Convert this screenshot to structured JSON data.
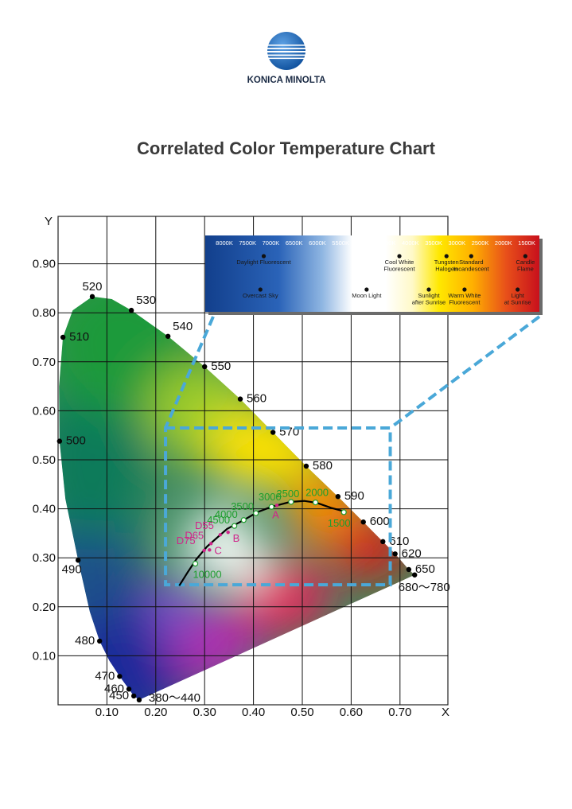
{
  "brand": {
    "name": "KONICA MINOLTA",
    "logo_icon": "globe-logo-icon",
    "color": "#1f63b0"
  },
  "title": "Correlated Color Temperature Chart",
  "chart_data": {
    "type": "scatter",
    "subtype": "cie-1931-chromaticity-diagram",
    "title": "Correlated Color Temperature Chart",
    "xlabel": "X",
    "ylabel": "Y",
    "xlim": [
      0.0,
      0.8
    ],
    "ylim": [
      0.0,
      0.9
    ],
    "grid": true,
    "x_ticks": [
      {
        "value": 0.1,
        "label": "0.10"
      },
      {
        "value": 0.2,
        "label": "0.20"
      },
      {
        "value": 0.3,
        "label": "0.30"
      },
      {
        "value": 0.4,
        "label": "0.40"
      },
      {
        "value": 0.5,
        "label": "0.50"
      },
      {
        "value": 0.6,
        "label": "0.60"
      },
      {
        "value": 0.7,
        "label": "0.70"
      }
    ],
    "y_ticks": [
      {
        "value": 0.1,
        "label": "0.10"
      },
      {
        "value": 0.2,
        "label": "0.20"
      },
      {
        "value": 0.3,
        "label": "0.30"
      },
      {
        "value": 0.4,
        "label": "0.40"
      },
      {
        "value": 0.5,
        "label": "0.50"
      },
      {
        "value": 0.6,
        "label": "0.60"
      },
      {
        "value": 0.7,
        "label": "0.70"
      },
      {
        "value": 0.8,
        "label": "0.80"
      },
      {
        "value": 0.9,
        "label": "0.90"
      }
    ],
    "spectral_locus": [
      {
        "label": "380～440",
        "x": 0.166,
        "y": 0.01,
        "side": "below-right"
      },
      {
        "label": "450",
        "x": 0.155,
        "y": 0.018,
        "side": "left"
      },
      {
        "label": "460",
        "x": 0.145,
        "y": 0.032,
        "side": "left"
      },
      {
        "label": "470",
        "x": 0.126,
        "y": 0.058,
        "side": "left"
      },
      {
        "label": "480",
        "x": 0.085,
        "y": 0.13,
        "side": "left"
      },
      {
        "label": "490",
        "x": 0.041,
        "y": 0.295,
        "side": "below-left"
      },
      {
        "label": "500",
        "x": 0.003,
        "y": 0.538,
        "side": "right"
      },
      {
        "label": "510",
        "x": 0.01,
        "y": 0.75,
        "side": "right"
      },
      {
        "label": "520",
        "x": 0.07,
        "y": 0.833,
        "side": "above"
      },
      {
        "label": "530",
        "x": 0.15,
        "y": 0.805,
        "side": "above-right"
      },
      {
        "label": "540",
        "x": 0.225,
        "y": 0.752,
        "side": "above-right"
      },
      {
        "label": "550",
        "x": 0.3,
        "y": 0.69,
        "side": "right"
      },
      {
        "label": "560",
        "x": 0.373,
        "y": 0.624,
        "side": "right"
      },
      {
        "label": "570",
        "x": 0.44,
        "y": 0.556,
        "side": "right"
      },
      {
        "label": "580",
        "x": 0.508,
        "y": 0.487,
        "side": "right"
      },
      {
        "label": "590",
        "x": 0.573,
        "y": 0.425,
        "side": "right"
      },
      {
        "label": "600",
        "x": 0.625,
        "y": 0.373,
        "side": "right"
      },
      {
        "label": "610",
        "x": 0.665,
        "y": 0.333,
        "side": "right"
      },
      {
        "label": "620",
        "x": 0.69,
        "y": 0.308,
        "side": "right"
      },
      {
        "label": "650",
        "x": 0.718,
        "y": 0.276,
        "side": "right"
      },
      {
        "label": "680～780",
        "x": 0.73,
        "y": 0.265,
        "side": "below"
      }
    ],
    "locus_shape": [
      [
        0.166,
        0.01
      ],
      [
        0.155,
        0.018
      ],
      [
        0.145,
        0.032
      ],
      [
        0.126,
        0.058
      ],
      [
        0.105,
        0.09
      ],
      [
        0.085,
        0.13
      ],
      [
        0.065,
        0.19
      ],
      [
        0.041,
        0.295
      ],
      [
        0.015,
        0.42
      ],
      [
        0.003,
        0.538
      ],
      [
        0.002,
        0.65
      ],
      [
        0.01,
        0.75
      ],
      [
        0.03,
        0.805
      ],
      [
        0.07,
        0.833
      ],
      [
        0.11,
        0.828
      ],
      [
        0.15,
        0.805
      ],
      [
        0.225,
        0.752
      ],
      [
        0.3,
        0.69
      ],
      [
        0.373,
        0.624
      ],
      [
        0.44,
        0.556
      ],
      [
        0.508,
        0.487
      ],
      [
        0.573,
        0.425
      ],
      [
        0.625,
        0.373
      ],
      [
        0.665,
        0.333
      ],
      [
        0.69,
        0.308
      ],
      [
        0.718,
        0.276
      ],
      [
        0.73,
        0.265
      ],
      [
        0.166,
        0.01
      ]
    ],
    "planckian_locus": [
      [
        0.248,
        0.243
      ],
      [
        0.265,
        0.27
      ],
      [
        0.283,
        0.297
      ],
      [
        0.305,
        0.323
      ],
      [
        0.346,
        0.359
      ],
      [
        0.38,
        0.377
      ],
      [
        0.408,
        0.393
      ],
      [
        0.437,
        0.404
      ],
      [
        0.475,
        0.414
      ],
      [
        0.504,
        0.416
      ],
      [
        0.53,
        0.412
      ],
      [
        0.559,
        0.402
      ],
      [
        0.585,
        0.395
      ]
    ],
    "cct_points": [
      {
        "label": "10000",
        "x": 0.281,
        "y": 0.288
      },
      {
        "label": "4500",
        "x": 0.361,
        "y": 0.365
      },
      {
        "label": "4000",
        "x": 0.38,
        "y": 0.377
      },
      {
        "label": "3500",
        "x": 0.405,
        "y": 0.391
      },
      {
        "label": "3000",
        "x": 0.437,
        "y": 0.404
      },
      {
        "label": "2500",
        "x": 0.477,
        "y": 0.414
      },
      {
        "label": "2000",
        "x": 0.527,
        "y": 0.413
      },
      {
        "label": "1500",
        "x": 0.585,
        "y": 0.393
      }
    ],
    "illuminants": [
      {
        "label": "D75",
        "x": 0.299,
        "y": 0.315
      },
      {
        "label": "D65",
        "x": 0.313,
        "y": 0.329
      },
      {
        "label": "D55",
        "x": 0.332,
        "y": 0.347
      },
      {
        "label": "C",
        "x": 0.31,
        "y": 0.316
      },
      {
        "label": "B",
        "x": 0.348,
        "y": 0.352
      },
      {
        "label": "A",
        "x": 0.448,
        "y": 0.407
      }
    ],
    "zoom_box": {
      "x0": 0.22,
      "x1": 0.68,
      "y0": 0.245,
      "y1": 0.565,
      "color": "#4aa8d8"
    },
    "temperature_bar": {
      "scale": [
        "8000K",
        "7500K",
        "7000K",
        "6500K",
        "6000K",
        "5500K",
        "5000K",
        "4500K",
        "4000K",
        "3500K",
        "3000K",
        "2500K",
        "2000K",
        "1500K"
      ],
      "sources_top": [
        {
          "lines": [
            "Daylight Fluorescent"
          ],
          "pos": 0.175
        },
        {
          "lines": [
            "Cool White",
            "Fluorescent"
          ],
          "pos": 0.581
        },
        {
          "lines": [
            "Tungsten",
            "Halogen"
          ],
          "pos": 0.722
        },
        {
          "lines": [
            "Standard",
            "Incandescent"
          ],
          "pos": 0.796
        },
        {
          "lines": [
            "Candle",
            "Flame"
          ],
          "pos": 0.958
        }
      ],
      "sources_bottom": [
        {
          "lines": [
            "Overcast Sky"
          ],
          "pos": 0.165
        },
        {
          "lines": [
            "Moon Light"
          ],
          "pos": 0.483
        },
        {
          "lines": [
            "Sunlight",
            "after Sunrise"
          ],
          "pos": 0.669
        },
        {
          "lines": [
            "Warm White",
            "Fluorescent"
          ],
          "pos": 0.776
        },
        {
          "lines": [
            "Light",
            "at Sunrise"
          ],
          "pos": 0.935
        }
      ]
    }
  }
}
